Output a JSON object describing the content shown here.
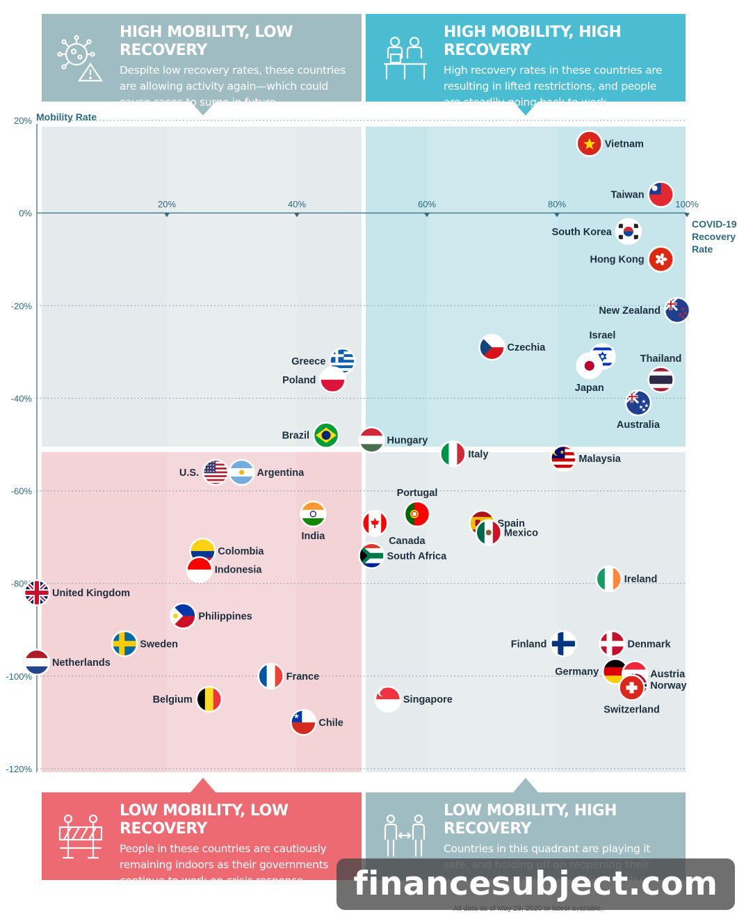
{
  "quadrants": {
    "tl": {
      "title": "HIGH MOBILITY, LOW RECOVERY",
      "body": "Despite low recovery rates, these countries are allowing activity again—which could cause cases to surge in future.",
      "icon": "virus-warning-icon"
    },
    "tr": {
      "title": "HIGH MOBILITY, HIGH RECOVERY",
      "body": "High recovery rates in these countries are resulting in lifted restrictions, and people are steadily going back to work.",
      "icon": "office-workers-icon"
    },
    "bl": {
      "title": "LOW MOBILITY, LOW RECOVERY",
      "body": "People in these countries are cautiously remaining indoors as their governments continue to work on crisis response.",
      "icon": "roadblock-icon"
    },
    "br": {
      "title": "LOW MOBILITY, HIGH RECOVERY",
      "body": "Countries in this quadrant are playing it safe, and holding off on reopening their economies until the population is fully recovered.",
      "icon": "social-distance-icon"
    }
  },
  "colors": {
    "tl_box": "#9fbcc2",
    "tr_box": "#4bbdd3",
    "bl_box": "#ee6a73",
    "br_box": "#9fbcc2",
    "tl_bg": "#e5ebec",
    "tr_bg": "#c6e6ec",
    "bl_bg": "#f4d3d7",
    "br_bg": "#e5ebec",
    "axis": "#2e6a80",
    "label": "#1d2e3c"
  },
  "watermark": "financesubject.com",
  "footnote": "All data as of May 29, 2020 or latest available.",
  "chart_data": {
    "type": "scatter",
    "title": "",
    "ylabel": "Mobility Rate",
    "xlabel": "COVID-19 Recovery Rate",
    "xlim": [
      0,
      100
    ],
    "ylim": [
      -120,
      20
    ],
    "x_ticks": [
      "20%",
      "40%",
      "60%",
      "80%",
      "100%"
    ],
    "y_ticks": [
      "20%",
      "0%",
      "-20%",
      "-40%",
      "-60%",
      "-80%",
      "-100%",
      "-120%"
    ],
    "x_unit": "%",
    "y_unit": "%",
    "grid": true,
    "points": [
      {
        "name": "Vietnam",
        "x": 85,
        "y": 15,
        "flag": "vietnam",
        "label_side": "right"
      },
      {
        "name": "Taiwan",
        "x": 96,
        "y": 4,
        "flag": "taiwan",
        "label_side": "left"
      },
      {
        "name": "South Korea",
        "x": 91,
        "y": -4,
        "flag": "south-korea",
        "label_side": "left"
      },
      {
        "name": "Hong Kong",
        "x": 96,
        "y": -10,
        "flag": "hong-kong",
        "label_side": "left"
      },
      {
        "name": "New Zealand",
        "x": 98.5,
        "y": -21,
        "flag": "new-zealand",
        "label_side": "left"
      },
      {
        "name": "Czechia",
        "x": 70,
        "y": -29,
        "flag": "czechia",
        "label_side": "right"
      },
      {
        "name": "Israel",
        "x": 87,
        "y": -31,
        "flag": "israel",
        "label_side": "above"
      },
      {
        "name": "Japan",
        "x": 85,
        "y": -33,
        "flag": "japan",
        "label_side": "below"
      },
      {
        "name": "Thailand",
        "x": 96,
        "y": -36,
        "flag": "thailand",
        "label_side": "above"
      },
      {
        "name": "Australia",
        "x": 92.5,
        "y": -41,
        "flag": "australia",
        "label_side": "below"
      },
      {
        "name": "Greece",
        "x": 47,
        "y": -32,
        "flag": "greece",
        "label_side": "left"
      },
      {
        "name": "Poland",
        "x": 45.5,
        "y": -36,
        "flag": "poland",
        "label_side": "left"
      },
      {
        "name": "Brazil",
        "x": 44.5,
        "y": -48,
        "flag": "brazil",
        "label_side": "left"
      },
      {
        "name": "Hungary",
        "x": 51.5,
        "y": -49,
        "flag": "hungary",
        "label_side": "right"
      },
      {
        "name": "Italy",
        "x": 64,
        "y": -52,
        "flag": "italy",
        "label_side": "right"
      },
      {
        "name": "Malaysia",
        "x": 81,
        "y": -53,
        "flag": "malaysia",
        "label_side": "right"
      },
      {
        "name": "U.S.",
        "x": 27.5,
        "y": -56,
        "flag": "us",
        "label_side": "left"
      },
      {
        "name": "Argentina",
        "x": 31.5,
        "y": -56,
        "flag": "argentina",
        "label_side": "right"
      },
      {
        "name": "Portugal",
        "x": 58.5,
        "y": -65,
        "flag": "portugal",
        "label_side": "above"
      },
      {
        "name": "India",
        "x": 42.5,
        "y": -65,
        "flag": "india",
        "label_side": "below"
      },
      {
        "name": "Canada",
        "x": 52,
        "y": -67,
        "flag": "canada",
        "label_side": "below-right"
      },
      {
        "name": "Spain",
        "x": 68.5,
        "y": -67,
        "flag": "spain",
        "label_side": "right"
      },
      {
        "name": "Mexico",
        "x": 69.5,
        "y": -69,
        "flag": "mexico",
        "label_side": "right"
      },
      {
        "name": "Colombia",
        "x": 25.5,
        "y": -73,
        "flag": "colombia",
        "label_side": "right"
      },
      {
        "name": "South Africa",
        "x": 51.5,
        "y": -74,
        "flag": "south-africa",
        "label_side": "right"
      },
      {
        "name": "Indonesia",
        "x": 25,
        "y": -77,
        "flag": "indonesia",
        "label_side": "right"
      },
      {
        "name": "Ireland",
        "x": 88,
        "y": -79,
        "flag": "ireland",
        "label_side": "right"
      },
      {
        "name": "United Kingdom",
        "x": 0,
        "y": -82,
        "flag": "uk",
        "label_side": "right"
      },
      {
        "name": "Philippines",
        "x": 22.5,
        "y": -87,
        "flag": "philippines",
        "label_side": "right"
      },
      {
        "name": "Sweden",
        "x": 13.5,
        "y": -93,
        "flag": "sweden",
        "label_side": "right"
      },
      {
        "name": "Finland",
        "x": 81,
        "y": -93,
        "flag": "finland",
        "label_side": "left"
      },
      {
        "name": "Denmark",
        "x": 88.5,
        "y": -93,
        "flag": "denmark",
        "label_side": "right"
      },
      {
        "name": "Netherlands",
        "x": 0,
        "y": -97,
        "flag": "netherlands",
        "label_side": "right"
      },
      {
        "name": "Germany",
        "x": 89,
        "y": -99,
        "flag": "germany",
        "label_side": "left"
      },
      {
        "name": "Austria",
        "x": 92,
        "y": -99.5,
        "flag": "austria",
        "label_side": "right"
      },
      {
        "name": "Norway",
        "x": 92,
        "y": -102,
        "flag": "norway",
        "label_side": "right"
      },
      {
        "name": "Switzerland",
        "x": 91.5,
        "y": -102.5,
        "flag": "switzerland",
        "label_side": "below"
      },
      {
        "name": "France",
        "x": 36,
        "y": -100,
        "flag": "france",
        "label_side": "right"
      },
      {
        "name": "Belgium",
        "x": 26.5,
        "y": -105,
        "flag": "belgium",
        "label_side": "left"
      },
      {
        "name": "Singapore",
        "x": 54,
        "y": -105,
        "flag": "singapore",
        "label_side": "right"
      },
      {
        "name": "Chile",
        "x": 41,
        "y": -110,
        "flag": "chile",
        "label_side": "right"
      }
    ]
  }
}
